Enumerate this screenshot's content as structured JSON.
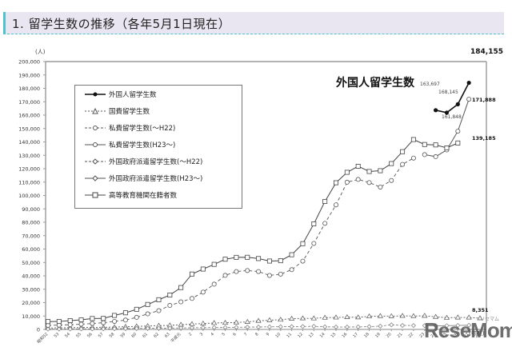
{
  "header": {
    "title": "1. 留学生数の推移（各年5月1日現在）"
  },
  "chart_title_overlay": "外国人留学生数",
  "watermark": {
    "text": "ReseMom",
    "sub": "リセマム"
  },
  "chart_data": {
    "type": "line",
    "title": "留学生数の推移（各年5月1日現在）",
    "ylabel": "(人)",
    "xlabel": "(年度)",
    "ylim": [
      0,
      200000
    ],
    "yticks": [
      "0",
      "10,000",
      "20,000",
      "30,000",
      "40,000",
      "50,000",
      "60,000",
      "70,000",
      "80,000",
      "90,000",
      "100,000",
      "110,000",
      "120,000",
      "130,000",
      "140,000",
      "150,000",
      "160,000",
      "170,000",
      "180,000",
      "190,000",
      "200,000"
    ],
    "grid": false,
    "legend_position": "upper-left inset",
    "x": [
      "昭和52",
      "53",
      "54",
      "55",
      "56",
      "57",
      "58",
      "59",
      "60",
      "61",
      "62",
      "63",
      "平成元",
      "2",
      "3",
      "4",
      "5",
      "6",
      "7",
      "8",
      "9",
      "10",
      "11",
      "12",
      "13",
      "14",
      "15",
      "16",
      "17",
      "18",
      "19",
      "20",
      "21",
      "22",
      "23",
      "24",
      "25",
      "26",
      "27",
      "28"
    ],
    "series": [
      {
        "name": "外国人留学生数",
        "style": "solid-filled-circle",
        "x_start": "24",
        "values": [
          163697,
          161848,
          168145,
          184155
        ]
      },
      {
        "name": "国費留学生数",
        "style": "dashed-triangle",
        "values": [
          1000,
          1200,
          1300,
          1400,
          1500,
          1600,
          1700,
          2000,
          2300,
          2500,
          2800,
          3000,
          3500,
          4000,
          4400,
          4800,
          4961,
          5219,
          5609,
          6400,
          6880,
          7271,
          8052,
          8270,
          8238,
          8774,
          8903,
          9173,
          9008,
          9746,
          10016,
          9921,
          10143,
          9994,
          10168,
          9396,
          8700,
          8900,
          8900,
          8351
        ]
      },
      {
        "name": "私費留学生数(〜H22)",
        "style": "dashed-circle",
        "values": [
          3000,
          3200,
          3500,
          3900,
          4400,
          5000,
          6000,
          7000,
          9000,
          11622,
          14000,
          17902,
          20568,
          23100,
          27863,
          33773,
          40356,
          43202,
          43957,
          43243,
          40300,
          41275,
          44600,
          51000,
          64200,
          79214,
          93000,
          109902,
          112000,
          109633,
          106297,
          111225,
          123237,
          127920,
          null,
          null,
          null,
          null,
          null,
          null
        ]
      },
      {
        "name": "私費留学生数(H23〜)",
        "style": "solid-circle",
        "x_start": "23",
        "values": [
          130500,
          129000,
          134000,
          148000,
          171888
        ]
      },
      {
        "name": "外国政府派遣留学生数(〜H22)",
        "style": "dashed-diamond",
        "values": [
          200,
          250,
          300,
          350,
          400,
          450,
          500,
          600,
          700,
          800,
          900,
          1000,
          1100,
          1200,
          1300,
          1400,
          1500,
          1600,
          1700,
          1800,
          1900,
          2000,
          2100,
          2200,
          2300,
          1927,
          1809,
          1803,
          1836,
          2101,
          2441,
          3426,
          3000,
          2900,
          null,
          null,
          null,
          null,
          null,
          null
        ]
      },
      {
        "name": "外国政府派遣留学生数(H23〜)",
        "style": "solid-diamond",
        "x_start": "23",
        "values": [
          2800,
          2700,
          2800,
          3000,
          3100
        ]
      },
      {
        "name": "高等教育機関在籍者数",
        "style": "solid-square",
        "values": [
          5849,
          5933,
          6572,
          7179,
          8116,
          8200,
          10428,
          12410,
          15009,
          18631,
          22154,
          25643,
          31251,
          41347,
          45066,
          48561,
          52405,
          53787,
          53847,
          52921,
          51047,
          51298,
          55755,
          64011,
          78812,
          95550,
          109508,
          117302,
          121812,
          117927,
          118498,
          123829,
          132720,
          141774,
          138075,
          137756,
          135519,
          139185,
          null,
          null
        ]
      }
    ],
    "annotations": [
      "184,155",
      "171,888",
      "139,185",
      "8,351",
      "163,697",
      "161,848",
      "168,145"
    ]
  },
  "legend": {
    "items": [
      "外国人留学生数",
      "国費留学生数",
      "私費留学生数(〜H22)",
      "私費留学生数(H23〜)",
      "外国政府派遣留学生数(〜H22)",
      "外国政府派遣留学生数(H23〜)",
      "高等教育機関在籍者数"
    ]
  },
  "axis": {
    "y_unit": "(人)",
    "x_unit": "(年度)",
    "y_labels": [
      "200,000",
      "190,000",
      "180,000",
      "170,000",
      "160,000",
      "150,000",
      "140,000",
      "130,000",
      "120,000",
      "110,000",
      "100,000",
      "90,000",
      "80,000",
      "70,000",
      "60,000",
      "50,000",
      "40,000",
      "30,000",
      "20,000",
      "10,000",
      "0"
    ],
    "x_labels": [
      "昭和52",
      "54",
      "56",
      "58",
      "60",
      "昭和62",
      "平成2",
      "4",
      "6",
      "8",
      "10",
      "12",
      "14",
      "16",
      "18",
      "20",
      "22",
      "24",
      "26",
      "28"
    ]
  },
  "labels": {
    "end_foreign": "184,155",
    "end_private": "171,888",
    "end_higher_ed": "139,185",
    "end_gov": "8,351",
    "f24": "163,697",
    "f25": "161,848",
    "f26": "168,145"
  }
}
